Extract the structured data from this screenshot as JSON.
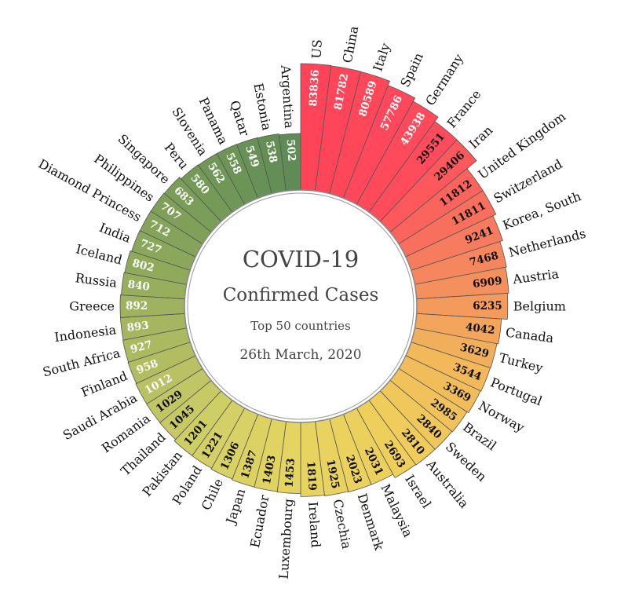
{
  "chart_data": {
    "type": "bar",
    "subtype": "radial",
    "title": "COVID-19",
    "subtitle": "Confirmed Cases",
    "caption": "Top 50 countries",
    "date": "26th March, 2020",
    "scale": "log",
    "categories": [
      "US",
      "China",
      "Italy",
      "Spain",
      "Germany",
      "France",
      "Iran",
      "United Kingdom",
      "Switzerland",
      "Korea, South",
      "Netherlands",
      "Austria",
      "Belgium",
      "Canada",
      "Turkey",
      "Portugal",
      "Norway",
      "Brazil",
      "Sweden",
      "Australia",
      "Israel",
      "Malaysia",
      "Denmark",
      "Czechia",
      "Ireland",
      "Luxembourg",
      "Ecuador",
      "Japan",
      "Chile",
      "Poland",
      "Pakistan",
      "Thailand",
      "Romania",
      "Saudi Arabia",
      "Finland",
      "South Africa",
      "Indonesia",
      "Greece",
      "Russia",
      "Iceland",
      "India",
      "Diamond Princess",
      "Philippines",
      "Singapore",
      "Peru",
      "Slovenia",
      "Panama",
      "Qatar",
      "Estonia",
      "Argentina"
    ],
    "values": [
      83836,
      81782,
      80589,
      57786,
      43938,
      29551,
      29406,
      11812,
      11811,
      9241,
      7468,
      6909,
      6235,
      4042,
      3629,
      3544,
      3369,
      2985,
      2840,
      2810,
      2693,
      2031,
      2023,
      1925,
      1819,
      1453,
      1403,
      1387,
      1306,
      1221,
      1201,
      1045,
      1029,
      1012,
      958,
      927,
      893,
      892,
      840,
      802,
      727,
      712,
      707,
      683,
      580,
      562,
      558,
      549,
      538,
      502
    ],
    "color_stops": [
      "#ff4459",
      "#ff4b5c",
      "#f5845e",
      "#f2b65a",
      "#efcf5c",
      "#e6d460",
      "#d2d068",
      "#b0bc62",
      "#8fa95c",
      "#749a58",
      "#5f8b56"
    ]
  }
}
